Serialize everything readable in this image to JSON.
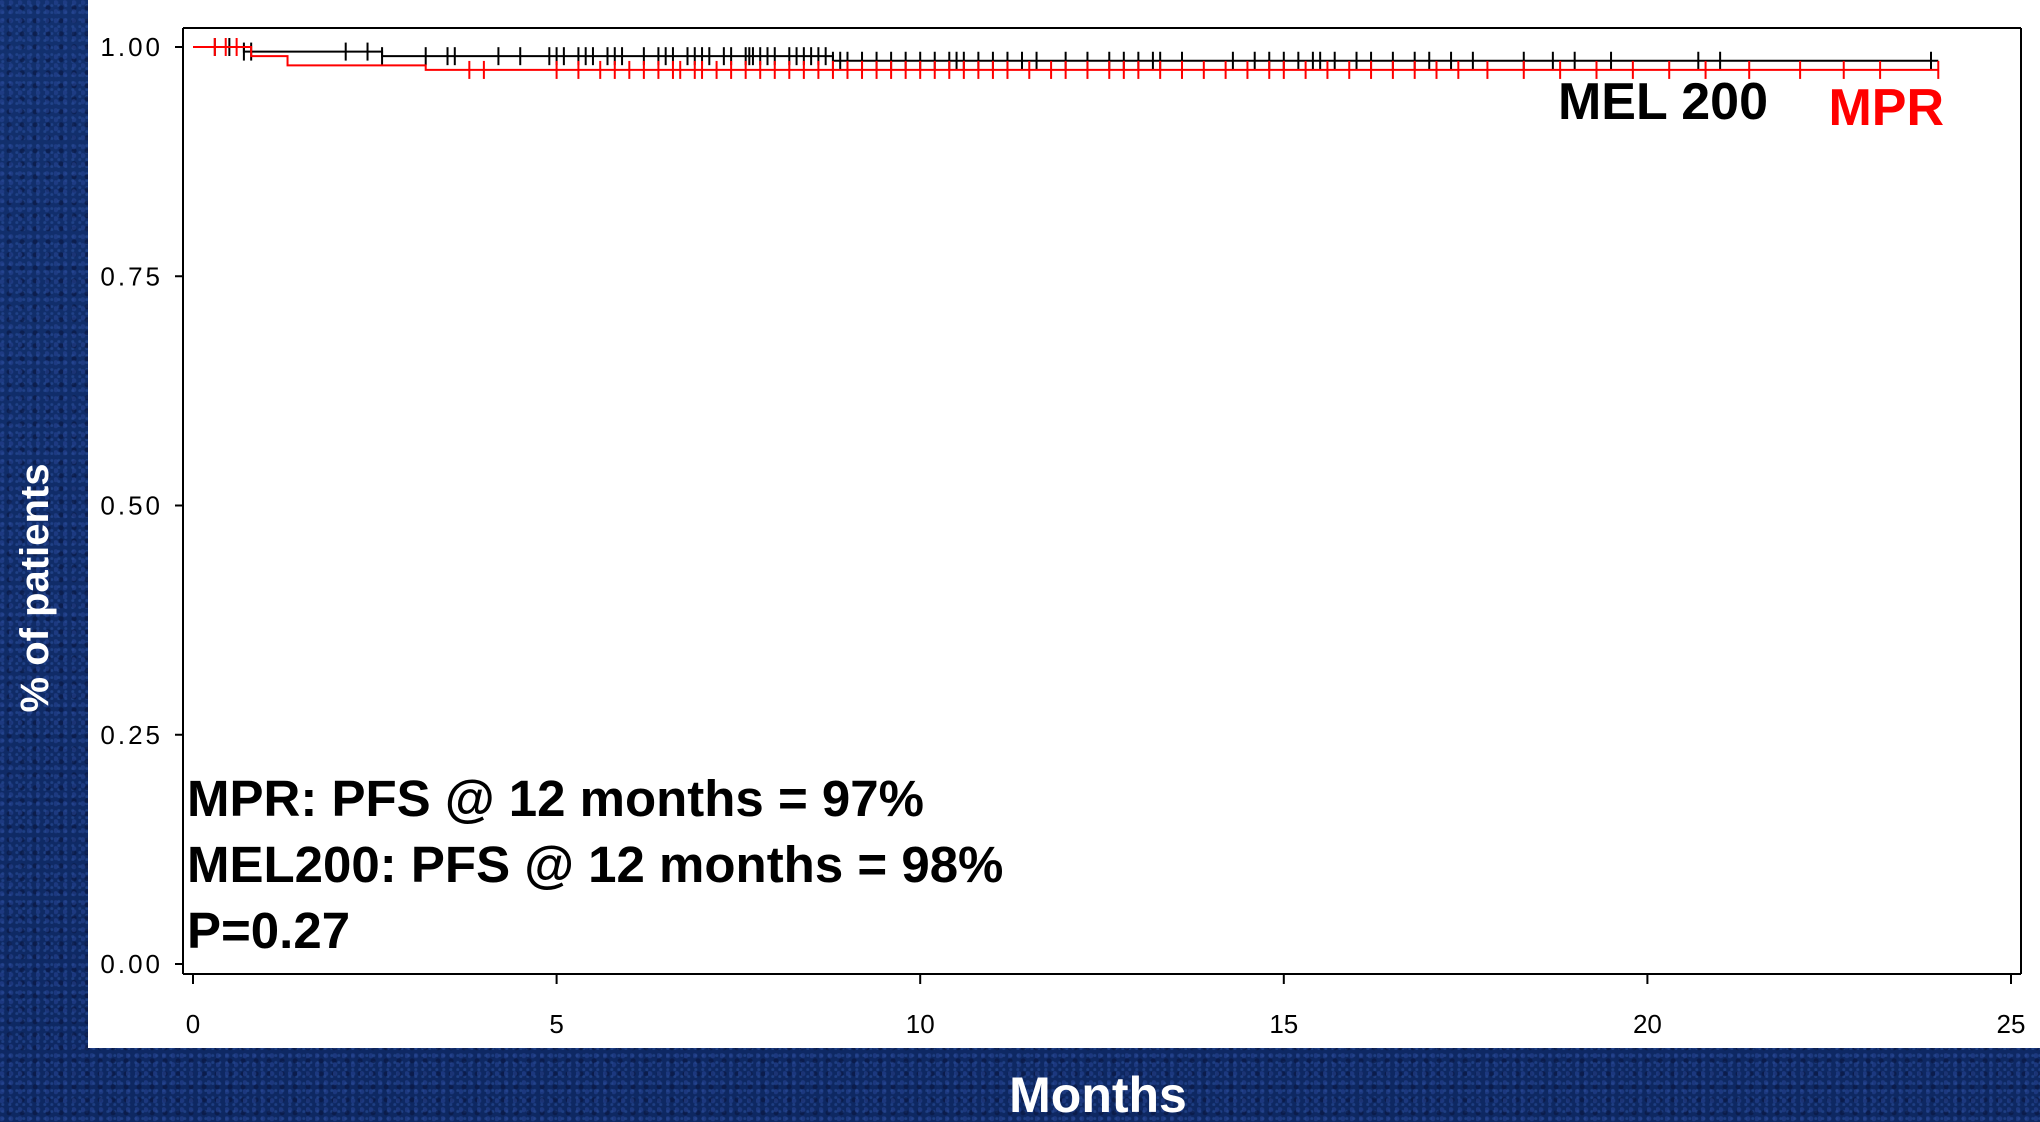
{
  "colors": {
    "background": "#0f2a66",
    "panel": "#ffffff",
    "mel200": "#000000",
    "mpr": "#ff0000",
    "axis_label": "#ffffff"
  },
  "annotation_lines": [
    "MPR: PFS @ 12 months = 97%",
    "MEL200: PFS @ 12 months = 98%",
    "P=0.27"
  ],
  "chart_data": {
    "type": "line",
    "subtype": "kaplan-meier",
    "title": "",
    "xlabel": "Months",
    "ylabel": "% of patients",
    "xlim": [
      0,
      25
    ],
    "ylim": [
      0,
      1
    ],
    "x_ticks": [
      0,
      5,
      10,
      15,
      20,
      25
    ],
    "x_tick_labels": [
      "0",
      "5",
      "10",
      "15",
      "20",
      "25"
    ],
    "y_ticks": [
      0,
      0.25,
      0.5,
      0.75,
      1.0
    ],
    "y_tick_labels": [
      "0.00",
      "0.25",
      "0.50",
      "0.75",
      "1.00"
    ],
    "grid": false,
    "series": [
      {
        "name": "MEL 200",
        "color": "#000000",
        "steps": [
          [
            0,
            1.0
          ],
          [
            0.7,
            0.995
          ],
          [
            2.6,
            0.99
          ],
          [
            8.8,
            0.985
          ],
          [
            24,
            0.985
          ]
        ],
        "censor_x": [
          0.3,
          0.5,
          0.7,
          0.8,
          2.1,
          2.4,
          2.6,
          3.2,
          3.5,
          3.6,
          4.2,
          4.5,
          4.9,
          5.0,
          5.1,
          5.3,
          5.4,
          5.5,
          5.7,
          5.8,
          5.9,
          6.2,
          6.4,
          6.5,
          6.6,
          6.8,
          6.9,
          7.0,
          7.1,
          7.3,
          7.4,
          7.6,
          7.65,
          7.7,
          7.8,
          7.9,
          8.0,
          8.2,
          8.3,
          8.4,
          8.5,
          8.6,
          8.7,
          8.8,
          8.9,
          9.0,
          9.2,
          9.4,
          9.6,
          9.8,
          10.0,
          10.2,
          10.4,
          10.5,
          10.6,
          10.8,
          11.0,
          11.2,
          11.4,
          11.6,
          12.0,
          12.3,
          12.6,
          12.8,
          13.0,
          13.2,
          13.3,
          13.6,
          14.3,
          14.6,
          14.8,
          15.0,
          15.2,
          15.4,
          15.5,
          15.7,
          16.0,
          16.2,
          16.5,
          16.8,
          17.0,
          17.3,
          17.6,
          18.3,
          18.7,
          19.0,
          19.5,
          20.7,
          21.0,
          23.9
        ]
      },
      {
        "name": "MPR",
        "color": "#ff0000",
        "steps": [
          [
            0,
            1.0
          ],
          [
            0.8,
            0.99
          ],
          [
            1.3,
            0.98
          ],
          [
            3.2,
            0.975
          ],
          [
            24,
            0.975
          ]
        ],
        "censor_x": [
          0.3,
          0.45,
          0.6,
          3.8,
          4.0,
          5.0,
          5.3,
          5.6,
          5.8,
          6.0,
          6.2,
          6.4,
          6.6,
          6.7,
          6.9,
          7.0,
          7.2,
          7.4,
          7.6,
          7.8,
          8.0,
          8.2,
          8.4,
          8.6,
          8.8,
          9.0,
          9.2,
          9.4,
          9.6,
          9.8,
          10.0,
          10.2,
          10.4,
          10.6,
          10.8,
          11.0,
          11.2,
          11.5,
          11.8,
          12.0,
          12.3,
          12.6,
          12.8,
          13.0,
          13.3,
          13.6,
          13.9,
          14.2,
          14.5,
          14.8,
          15.0,
          15.3,
          15.6,
          15.9,
          16.2,
          16.5,
          16.8,
          17.1,
          17.4,
          17.8,
          18.3,
          18.8,
          19.3,
          19.8,
          20.3,
          20.8,
          21.4,
          22.1,
          22.7,
          23.2,
          24.0
        ]
      }
    ],
    "legend": [
      {
        "label": "MEL 200",
        "color": "#000000"
      },
      {
        "label": "MPR",
        "color": "#ff0000"
      }
    ],
    "legend_placement": "top-right"
  }
}
